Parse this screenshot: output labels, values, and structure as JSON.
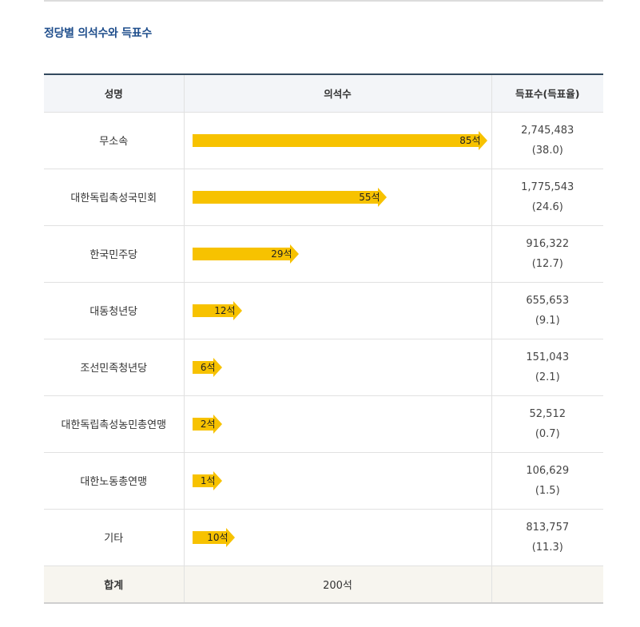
{
  "heading": "정당별 의석수와 득표수",
  "table": {
    "headers": {
      "party": "성명",
      "seats": "의석수",
      "votes": "득표수(득표율)"
    },
    "total": {
      "label": "합계",
      "seats": "200석",
      "votes": ""
    }
  },
  "colors": {
    "bar": "#f7c200",
    "heading": "#1f4e8c"
  },
  "chart_data": {
    "type": "bar",
    "categories": [
      "무소속",
      "대한독립촉성국민회",
      "한국민주당",
      "대동청년당",
      "조선민족청년당",
      "대한독립촉성농민총연맹",
      "대한노동총연맹",
      "기타"
    ],
    "values": [
      85,
      55,
      29,
      12,
      6,
      2,
      1,
      10
    ],
    "value_labels": [
      "85석",
      "55석",
      "29석",
      "12석",
      "6석",
      "2석",
      "1석",
      "10석"
    ],
    "votes": [
      "2,745,483",
      "1,775,543",
      "916,322",
      "655,653",
      "151,043",
      "52,512",
      "106,629",
      "813,757"
    ],
    "vote_shares": [
      "(38.0)",
      "(24.6)",
      "(12.7)",
      "(9.1)",
      "(2.1)",
      "(0.7)",
      "(1.5)",
      "(11.3)"
    ]
  }
}
